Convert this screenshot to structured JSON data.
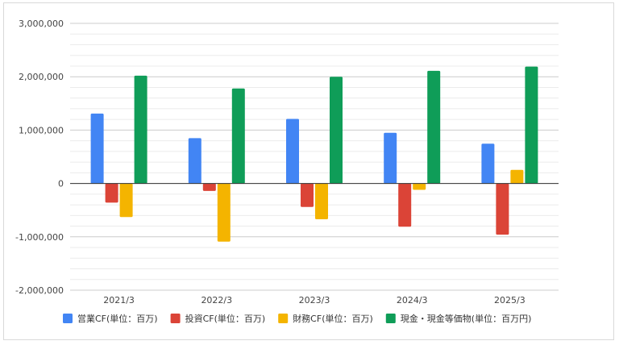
{
  "chart_data": {
    "type": "bar",
    "title": "",
    "xlabel": "",
    "ylabel": "",
    "categories": [
      "2021/3",
      "2022/3",
      "2023/3",
      "2024/3",
      "2025/3"
    ],
    "ylim": [
      -2000000,
      3000000
    ],
    "y_ticks": [
      3000000,
      2000000,
      1000000,
      0,
      -1000000,
      -2000000
    ],
    "y_tick_labels": [
      "3,000,000",
      "2,000,000",
      "1,000,000",
      "0",
      "-1,000,000",
      "-2,000,000"
    ],
    "grid": true,
    "legend_position": "bottom",
    "series": [
      {
        "name": "営業CF(単位：百万)",
        "color": "#4285f4",
        "values": [
          1310000,
          850000,
          1210000,
          950000,
          745000
        ]
      },
      {
        "name": "投資CF(単位：百万)",
        "color": "#db4437",
        "values": [
          -360000,
          -140000,
          -440000,
          -810000,
          -960000
        ]
      },
      {
        "name": "財務CF(単位：百万)",
        "color": "#f4b400",
        "values": [
          -630000,
          -1090000,
          -670000,
          -120000,
          255000
        ]
      },
      {
        "name": "現金・現金等価物(単位：百万円)",
        "color": "#0f9d58",
        "values": [
          2020000,
          1780000,
          2000000,
          2110000,
          2190000
        ]
      }
    ]
  }
}
